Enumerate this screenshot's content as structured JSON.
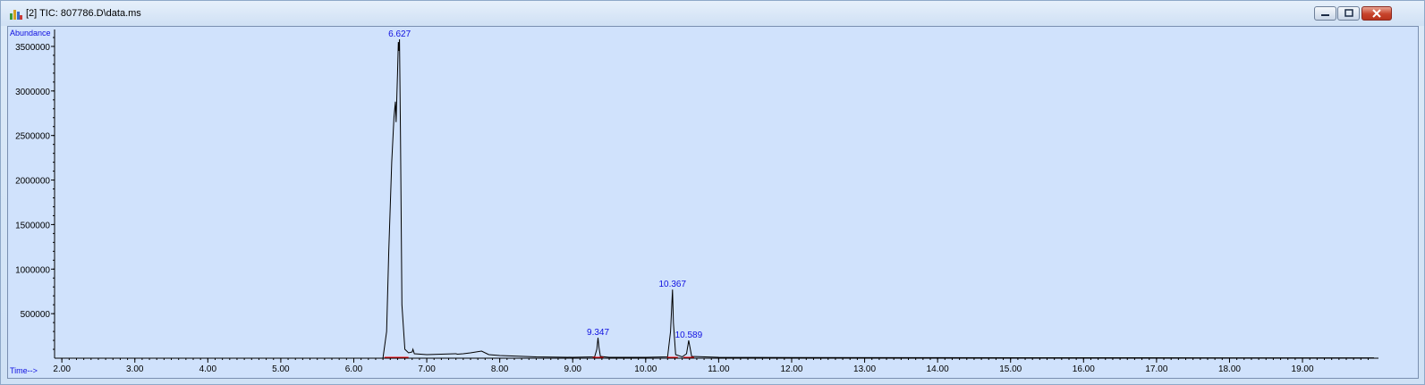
{
  "window": {
    "title": "[2] TIC: 807786.D\\data.ms",
    "app_icon": "chemstation-icon",
    "buttons": [
      "minimize-icon",
      "restore-icon",
      "close-icon"
    ]
  },
  "chart_data": {
    "type": "line",
    "ylabel": "Abundance",
    "xlabel": "Time-->",
    "xlim": [
      1.9,
      19.98
    ],
    "ylim": [
      0,
      3650000
    ],
    "x_ticks": [
      "2.00",
      "3.00",
      "4.00",
      "5.00",
      "6.00",
      "7.00",
      "8.00",
      "9.00",
      "10.00",
      "11.00",
      "12.00",
      "13.00",
      "14.00",
      "15.00",
      "16.00",
      "17.00",
      "18.00",
      "19.00"
    ],
    "y_ticks": [
      "500000",
      "1000000",
      "1500000",
      "2000000",
      "2500000",
      "3000000",
      "3500000"
    ],
    "series": [
      {
        "x": [
          1.9,
          6.4,
          6.45,
          6.48,
          6.52,
          6.55,
          6.57,
          6.58,
          6.6,
          6.61,
          6.62,
          6.627,
          6.64,
          6.66,
          6.7,
          6.75,
          6.8,
          6.81,
          6.83,
          7.0,
          7.4,
          7.42,
          7.5,
          7.6,
          7.75,
          7.85,
          8.0,
          8.5,
          9.0,
          9.3,
          9.33,
          9.347,
          9.36,
          9.38,
          9.5,
          10.0,
          10.3,
          10.34,
          10.367,
          10.38,
          10.41,
          10.5,
          10.56,
          10.589,
          10.6,
          10.63,
          11.0,
          12.0,
          14.0,
          16.0,
          18.0,
          19.98
        ],
        "y": [
          0,
          0,
          300000,
          1200000,
          2200000,
          2700000,
          2880000,
          2650000,
          3200000,
          3550000,
          3450000,
          3580000,
          2500000,
          600000,
          100000,
          60000,
          70000,
          100000,
          50000,
          40000,
          50000,
          45000,
          50000,
          60000,
          80000,
          40000,
          30000,
          15000,
          10000,
          15000,
          100000,
          230000,
          120000,
          20000,
          10000,
          10000,
          15000,
          300000,
          770000,
          400000,
          40000,
          15000,
          50000,
          200000,
          150000,
          20000,
          10000,
          8000,
          6000,
          5000,
          4000,
          4000
        ]
      }
    ],
    "peak_labels": [
      {
        "rt": "6.627",
        "x": 6.627,
        "y": 3580000
      },
      {
        "rt": "9.347",
        "x": 9.347,
        "y": 230000
      },
      {
        "rt": "10.367",
        "x": 10.367,
        "y": 770000
      },
      {
        "rt": "10.589",
        "x": 10.589,
        "y": 200000
      }
    ],
    "grid": false,
    "colors": {
      "trace": "#000000",
      "labels": "#1010e0",
      "baseline_marks": "#ff0000",
      "background": "#d0e2fc"
    }
  }
}
